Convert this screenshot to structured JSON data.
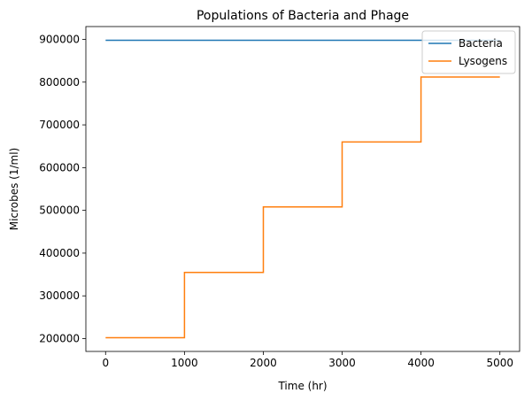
{
  "chart_data": {
    "type": "line",
    "title": "Populations of Bacteria and Phage",
    "xlabel": "Time (hr)",
    "ylabel": "Microbes (1/ml)",
    "xlim": [
      -250,
      5250
    ],
    "ylim": [
      170000,
      930000
    ],
    "xticks": [
      0,
      1000,
      2000,
      3000,
      4000,
      5000
    ],
    "yticks": [
      200000,
      300000,
      400000,
      500000,
      600000,
      700000,
      800000,
      900000
    ],
    "legend_position": "top-right",
    "grid": false,
    "series": [
      {
        "name": "Bacteria",
        "color": "#1f77b4",
        "step": false,
        "x": [
          0,
          5000
        ],
        "y": [
          898000,
          898000
        ]
      },
      {
        "name": "Lysogens",
        "color": "#ff7f0e",
        "step": true,
        "x": [
          0,
          1000,
          2000,
          3000,
          4000,
          5000
        ],
        "y": [
          202000,
          355000,
          508000,
          660000,
          812000,
          812000
        ]
      }
    ]
  }
}
